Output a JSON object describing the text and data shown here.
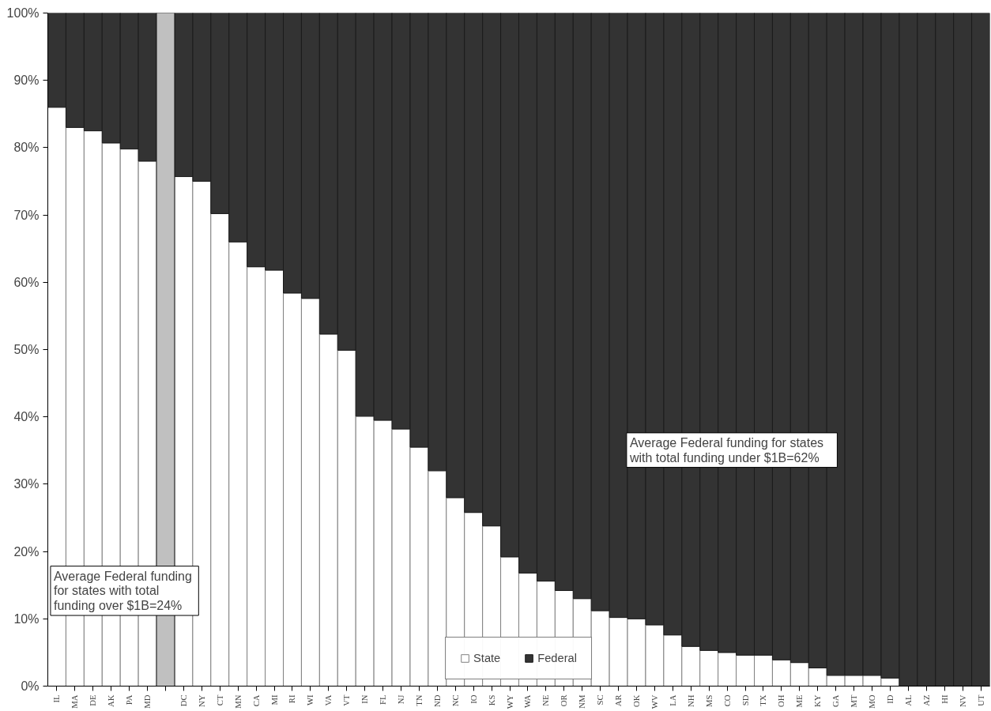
{
  "chart_data": {
    "type": "bar",
    "stacked": true,
    "categories": [
      "IL",
      "MA",
      "DE",
      "AK",
      "PA",
      "MD",
      null,
      "DC",
      "NY",
      "CT",
      "MN",
      "CA",
      "MI",
      "RI",
      "WI",
      "VA",
      "VT",
      "IN",
      "FL",
      "NJ",
      "TN",
      "ND",
      "NC",
      "IO",
      "KS",
      "WY",
      "WA",
      "NE",
      "OR",
      "NM",
      "SC",
      "AR",
      "OK",
      "WV",
      "LA",
      "NH",
      "MS",
      "CO",
      "SD",
      "TX",
      "OH",
      "ME",
      "KY",
      "GA",
      "MT",
      "MO",
      "ID",
      "AL",
      "AZ",
      "HI",
      "NV",
      "UT"
    ],
    "series": [
      {
        "name": "State",
        "color": "#ffffff",
        "values": [
          86,
          83,
          82.5,
          80.7,
          79.8,
          78,
          null,
          75.7,
          75,
          70.2,
          66,
          62.3,
          61.8,
          58.4,
          57.6,
          52.3,
          49.9,
          40.1,
          39.5,
          38.2,
          35.5,
          32,
          28,
          25.8,
          23.8,
          19.2,
          16.8,
          15.6,
          14.2,
          13,
          11.2,
          10.2,
          10,
          9.1,
          7.6,
          5.9,
          5.3,
          5,
          4.6,
          4.6,
          3.9,
          3.5,
          2.7,
          1.6,
          1.6,
          1.6,
          1.2,
          0,
          0,
          0,
          0,
          0
        ]
      },
      {
        "name": "Federal",
        "color": "#333333",
        "values": [
          14,
          17,
          17.5,
          19.3,
          20.2,
          22,
          null,
          24.3,
          25,
          29.8,
          34,
          37.7,
          38.2,
          41.6,
          42.4,
          47.7,
          50.1,
          59.9,
          60.5,
          61.8,
          64.5,
          68,
          72,
          74.2,
          76.2,
          80.8,
          83.2,
          84.4,
          85.8,
          87,
          88.8,
          89.8,
          90,
          90.9,
          92.4,
          94.1,
          94.7,
          95,
          95.4,
          95.4,
          96.1,
          96.5,
          97.3,
          98.4,
          98.4,
          98.4,
          98.8,
          100,
          100,
          100,
          100,
          100
        ]
      },
      {
        "color": "#c0c0c0",
        "values": [
          null,
          null,
          null,
          null,
          null,
          null,
          100,
          null,
          null,
          null,
          null,
          null,
          null,
          null,
          null,
          null,
          null,
          null,
          null,
          null,
          null,
          null,
          null,
          null,
          null,
          null,
          null,
          null,
          null,
          null,
          null,
          null,
          null,
          null,
          null,
          null,
          null,
          null,
          null,
          null,
          null,
          null,
          null,
          null,
          null,
          null,
          null,
          null,
          null,
          null,
          null,
          null
        ]
      }
    ],
    "ylim": [
      0,
      100
    ],
    "yticks": [
      {
        "value": 0,
        "label": "0%"
      },
      {
        "value": 10,
        "label": "10%"
      },
      {
        "value": 20,
        "label": "20%"
      },
      {
        "value": 30,
        "label": "30%"
      },
      {
        "value": 40,
        "label": "40%"
      },
      {
        "value": 50,
        "label": "50%"
      },
      {
        "value": 60,
        "label": "60%"
      },
      {
        "value": 70,
        "label": "70%"
      },
      {
        "value": 80,
        "label": "80%"
      },
      {
        "value": 90,
        "label": "90%"
      },
      {
        "value": 100,
        "label": "100%"
      }
    ],
    "annotations": [
      "Average  Federal funding\nfor states  with total\nfunding over $1B=24%",
      "Average  Federal  funding  for states\nwith  total  funding  under $1B=62%"
    ],
    "legend": "bottom"
  }
}
